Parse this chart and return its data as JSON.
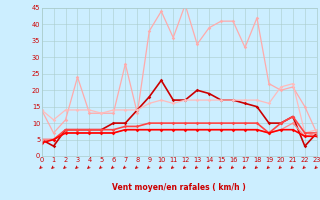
{
  "xlabel": "Vent moyen/en rafales ( km/h )",
  "ylabel": "",
  "xlim": [
    0,
    23
  ],
  "ylim": [
    0,
    45
  ],
  "yticks": [
    0,
    5,
    10,
    15,
    20,
    25,
    30,
    35,
    40,
    45
  ],
  "xticks": [
    0,
    1,
    2,
    3,
    4,
    5,
    6,
    7,
    8,
    9,
    10,
    11,
    12,
    13,
    14,
    15,
    16,
    17,
    18,
    19,
    20,
    21,
    22,
    23
  ],
  "bg_color": "#cceeff",
  "grid_color": "#aacccc",
  "series": [
    {
      "x": [
        0,
        1,
        2,
        3,
        4,
        5,
        6,
        7,
        8,
        9,
        10,
        11,
        12,
        13,
        14,
        15,
        16,
        17,
        18,
        19,
        20,
        21,
        22,
        23
      ],
      "y": [
        14,
        7,
        11,
        24,
        13,
        13,
        13,
        28,
        13,
        38,
        44,
        36,
        46,
        34,
        39,
        41,
        41,
        33,
        42,
        22,
        20,
        21,
        15,
        7
      ],
      "color": "#ffaaaa",
      "lw": 0.9,
      "marker": "D",
      "ms": 1.8
    },
    {
      "x": [
        0,
        1,
        2,
        3,
        4,
        5,
        6,
        7,
        8,
        9,
        10,
        11,
        12,
        13,
        14,
        15,
        16,
        17,
        18,
        19,
        20,
        21,
        22,
        23
      ],
      "y": [
        5,
        3,
        8,
        8,
        8,
        8,
        10,
        10,
        14,
        18,
        23,
        17,
        17,
        20,
        19,
        17,
        17,
        16,
        15,
        10,
        10,
        12,
        3,
        7
      ],
      "color": "#cc0000",
      "lw": 1.2,
      "marker": "D",
      "ms": 1.8
    },
    {
      "x": [
        0,
        1,
        2,
        3,
        4,
        5,
        6,
        7,
        8,
        9,
        10,
        11,
        12,
        13,
        14,
        15,
        16,
        17,
        18,
        19,
        20,
        21,
        22,
        23
      ],
      "y": [
        14,
        11,
        14,
        14,
        14,
        13,
        14,
        14,
        14,
        16,
        17,
        16,
        17,
        17,
        17,
        17,
        17,
        17,
        17,
        16,
        21,
        22,
        7,
        8
      ],
      "color": "#ffbbbb",
      "lw": 0.9,
      "marker": "D",
      "ms": 1.8
    },
    {
      "x": [
        0,
        1,
        2,
        3,
        4,
        5,
        6,
        7,
        8,
        9,
        10,
        11,
        12,
        13,
        14,
        15,
        16,
        17,
        18,
        19,
        20,
        21,
        22,
        23
      ],
      "y": [
        5,
        5,
        8,
        8,
        8,
        8,
        8,
        9,
        9,
        10,
        10,
        10,
        10,
        10,
        10,
        10,
        10,
        10,
        10,
        7,
        10,
        12,
        7,
        7
      ],
      "color": "#ff4444",
      "lw": 1.2,
      "marker": "D",
      "ms": 1.8
    },
    {
      "x": [
        0,
        1,
        2,
        3,
        4,
        5,
        6,
        7,
        8,
        9,
        10,
        11,
        12,
        13,
        14,
        15,
        16,
        17,
        18,
        19,
        20,
        21,
        22,
        23
      ],
      "y": [
        5,
        5,
        7,
        7,
        7,
        7,
        7,
        8,
        8,
        8,
        8,
        8,
        8,
        8,
        8,
        8,
        8,
        8,
        8,
        7,
        8,
        10,
        6,
        7
      ],
      "color": "#ff8888",
      "lw": 0.9,
      "marker": "D",
      "ms": 1.8
    },
    {
      "x": [
        0,
        1,
        2,
        3,
        4,
        5,
        6,
        7,
        8,
        9,
        10,
        11,
        12,
        13,
        14,
        15,
        16,
        17,
        18,
        19,
        20,
        21,
        22,
        23
      ],
      "y": [
        4,
        5,
        7,
        7,
        7,
        7,
        7,
        8,
        8,
        8,
        8,
        8,
        8,
        8,
        8,
        8,
        8,
        8,
        8,
        7,
        8,
        8,
        6,
        6
      ],
      "color": "#ff0000",
      "lw": 1.2,
      "marker": "D",
      "ms": 1.8
    }
  ],
  "arrow_color": "#cc0000",
  "tick_label_color": "#cc0000",
  "xlabel_color": "#cc0000",
  "axis_label_fontsize": 5.5,
  "tick_fontsize": 4.8
}
